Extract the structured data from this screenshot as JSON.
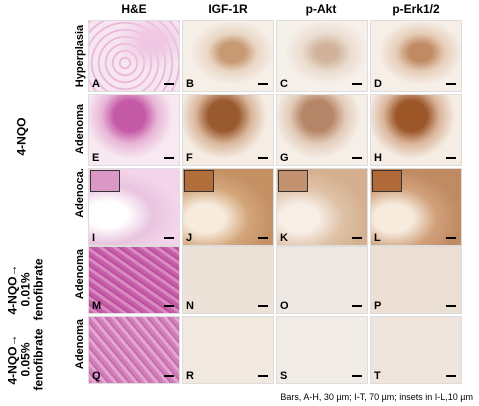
{
  "columns": [
    "H&E",
    "IGF-1R",
    "p-Akt",
    "p-Erk1/2"
  ],
  "group_label": "4-NQO",
  "row_labels": [
    "Hyperplasia",
    "Adenoma",
    "Adenoca."
  ],
  "group2": {
    "line1": "4-NQO→",
    "line2": "0.01%",
    "line3": "fenofibrate",
    "row": "Adenoma"
  },
  "group3": {
    "line1": "4-NQO→",
    "line2": "0.05%",
    "line3": "fenofibrate",
    "row": "Adenoma"
  },
  "panels": [
    "A",
    "B",
    "C",
    "D",
    "E",
    "F",
    "G",
    "H",
    "I",
    "J",
    "K",
    "L",
    "M",
    "N",
    "O",
    "P",
    "Q",
    "R",
    "S",
    "T"
  ],
  "caption": "Bars, A-H, 30 µm; I-T, 70 µm; insets in I-L,10 µm",
  "colors": {
    "he": "#d58ec4",
    "ihc": "#b98a58",
    "bg": "#f7f2ee"
  }
}
